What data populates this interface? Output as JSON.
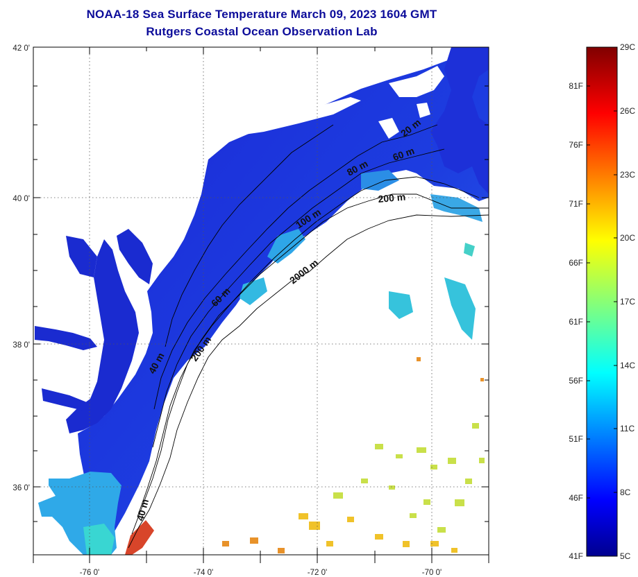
{
  "title": {
    "line1": "NOAA-18 Sea Surface Temperature March 09, 2023 1604 GMT",
    "line2": "Rutgers Coastal Ocean Observation Lab"
  },
  "map": {
    "lat_labels": [
      {
        "value": 42,
        "text": "42 0'"
      },
      {
        "value": 40,
        "text": "40 0'"
      },
      {
        "value": 38,
        "text": "38 0'"
      },
      {
        "value": 36,
        "text": "36 0'"
      }
    ],
    "lon_labels": [
      {
        "value": -76,
        "text": "-76 0'"
      },
      {
        "value": -74,
        "text": "-74 0'"
      },
      {
        "value": -72,
        "text": "-72 0'"
      },
      {
        "value": -70,
        "text": "-70 0'"
      }
    ],
    "lat_range": [
      35,
      42.05
    ],
    "lon_range": [
      -77,
      -69
    ],
    "depth_labels": [
      "20 m",
      "60 m",
      "80 m",
      "200 m",
      "100 m",
      "2000 m",
      "60 m",
      "200 m",
      "40 m",
      "40 m"
    ],
    "colors": {
      "land": "#ffffff",
      "cold_water": "#1a2fd8",
      "frame": "#000000",
      "grid": "#555555"
    }
  },
  "colorbar": {
    "fahrenheit": [
      "81F",
      "76F",
      "71F",
      "66F",
      "61F",
      "56F",
      "51F",
      "46F",
      "41F"
    ],
    "celsius": [
      "29C",
      "26C",
      "23C",
      "20C",
      "17C",
      "14C",
      "11C",
      "8C",
      "5C"
    ],
    "range_c": [
      5,
      29
    ],
    "colormap": "jet"
  }
}
